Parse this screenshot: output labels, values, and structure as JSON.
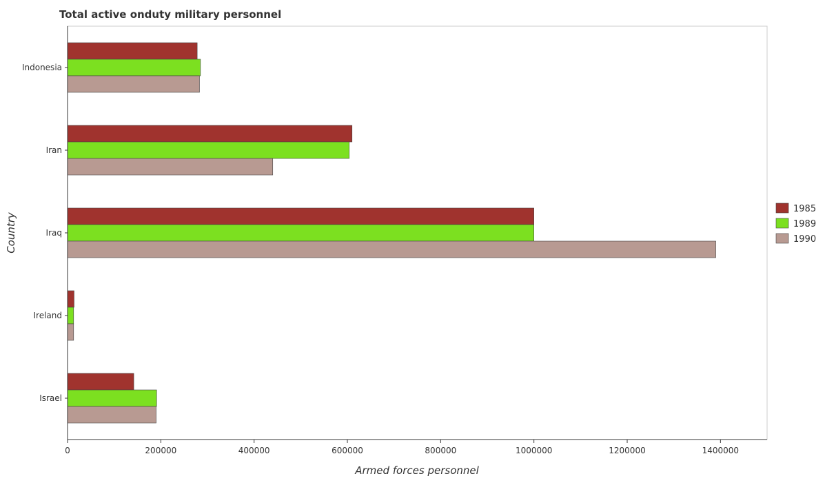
{
  "chart_data": {
    "type": "bar",
    "orientation": "horizontal",
    "title": "Total active onduty military personnel",
    "xlabel": "Armed forces personnel",
    "ylabel": "Country",
    "categories": [
      "Indonesia",
      "Iran",
      "Iraq",
      "Ireland",
      "Israel"
    ],
    "series": [
      {
        "name": "1985",
        "color": "#a0332e",
        "values": [
          278000,
          610000,
          1000000,
          14000,
          142000
        ]
      },
      {
        "name": "1989",
        "color": "#7ce020",
        "values": [
          285000,
          604000,
          1000000,
          13000,
          191000
        ]
      },
      {
        "name": "1990",
        "color": "#b89a92",
        "values": [
          283000,
          440000,
          1390000,
          13000,
          190000
        ]
      }
    ],
    "xlim": [
      0,
      1500000
    ],
    "xticks": [
      0,
      200000,
      400000,
      600000,
      800000,
      1000000,
      1200000,
      1400000
    ],
    "xtick_labels": [
      "0",
      "200000",
      "400000",
      "600000",
      "800000",
      "1000000",
      "1200000",
      "1400000"
    ],
    "grid": false,
    "legend_position": "right"
  }
}
